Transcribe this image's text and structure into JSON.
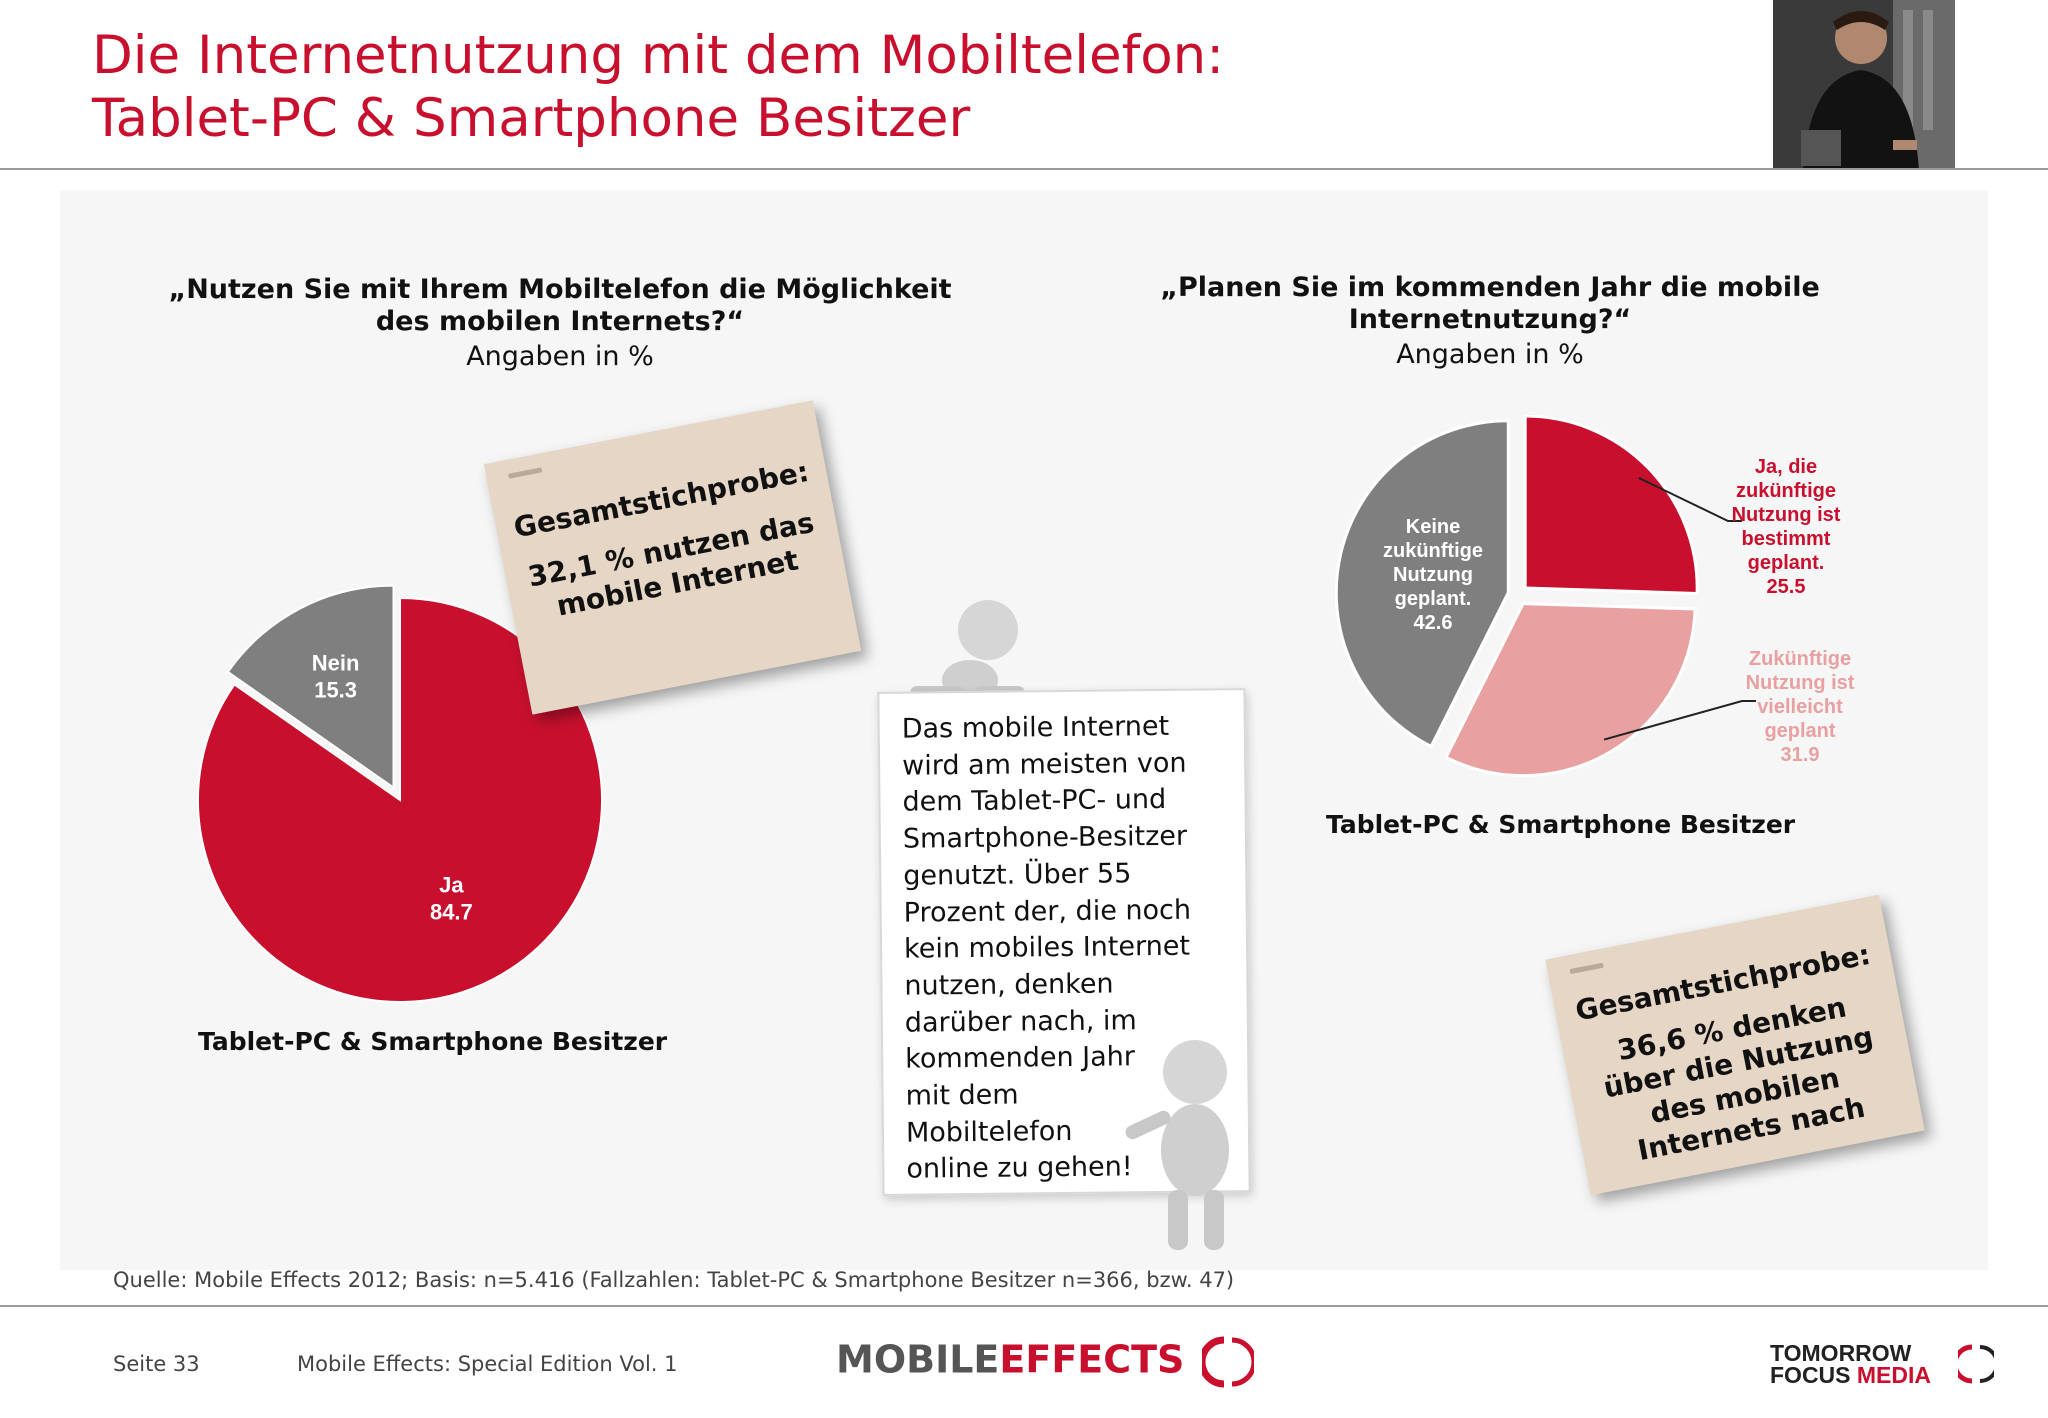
{
  "header": {
    "title_line1": "Die Internetnutzung mit dem Mobiltelefon:",
    "title_line2": "Tablet-PC & Smartphone Besitzer"
  },
  "left": {
    "question": "„Nutzen Sie mit Ihrem Mobiltelefon die Möglichkeit\ndes mobilen Internets?“",
    "subtitle": "Angaben in %",
    "caption": "Tablet-PC & Smartphone Besitzer"
  },
  "right": {
    "question": "„Planen Sie im kommenden Jahr die mobile\nInternetnutzung?“",
    "subtitle": "Angaben in %",
    "caption": "Tablet-PC & Smartphone Besitzer"
  },
  "note_left": {
    "heading": "Gesamtstichprobe:",
    "body": "32,1 % nutzen das\nmobile Internet"
  },
  "note_right": {
    "heading": "Gesamtstichprobe:",
    "body": "36,6 % denken\nüber die Nutzung\ndes mobilen\nInternets nach"
  },
  "board": {
    "text": "Das mobile Internet\nwird am meisten von\ndem Tablet-PC- und\nSmartphone-Besitzer\ngenutzt. Über 55\nProzent der, die noch\nkein mobiles Internet\nnutzen, denken\ndarüber nach, im\nkommenden Jahr\nmit dem\nMobiltelefon\nonline zu gehen!"
  },
  "footer": {
    "source": "Quelle: Mobile Effects 2012; Basis: n=5.416 (Fallzahlen: Tablet-PC & Smartphone Besitzer n=366, bzw. 47)",
    "page": "Seite 33",
    "edition": "Mobile Effects: Special Edition Vol. 1",
    "logo_me_part1": "MOBILE",
    "logo_me_part2": "EFFECTS",
    "logo_tf_line1": "TOMORROW",
    "logo_tf_line2a": "FOCUS ",
    "logo_tf_line2b": "MEDIA"
  },
  "colors": {
    "accent": "#c8102e",
    "gray": "#7f7f7f",
    "pink": "#e8a0a0"
  },
  "chart_data": [
    {
      "type": "pie",
      "title": "„Nutzen Sie mit Ihrem Mobiltelefon die Möglichkeit des mobilen Internets?“",
      "subtitle": "Angaben in %",
      "slices": [
        {
          "label": "Ja",
          "value": 84.7,
          "color": "#c8102e"
        },
        {
          "label": "Nein",
          "value": 15.3,
          "color": "#7f7f7f",
          "exploded": true
        }
      ]
    },
    {
      "type": "pie",
      "title": "„Planen Sie im kommenden Jahr die mobile Internetnutzung?“",
      "subtitle": "Angaben in %",
      "slices": [
        {
          "label": "Ja, die zukünftige Nutzung ist bestimmt geplant.",
          "value": 25.5,
          "color": "#c8102e",
          "exploded": true
        },
        {
          "label": "Zukünftige Nutzung ist vielleicht geplant",
          "value": 31.9,
          "color": "#e8a0a0",
          "exploded": true
        },
        {
          "label": "Keine zukünftige Nutzung geplant.",
          "value": 42.6,
          "color": "#7f7f7f",
          "exploded": true
        }
      ]
    }
  ]
}
